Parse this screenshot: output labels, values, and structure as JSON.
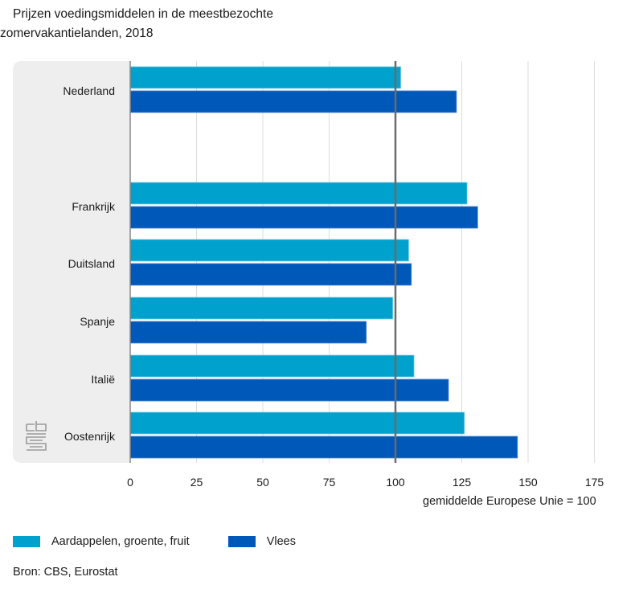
{
  "chart_data": {
    "type": "bar",
    "orientation": "horizontal",
    "title": "Prijzen voedingsmiddelen in de meestbezochte zomervakantielanden, 2018",
    "title_lines": [
      "Prijzen voedingsmiddelen in de meestbezochte",
      "zomervakantielanden, 2018"
    ],
    "categories": [
      "Nederland",
      "Frankrijk",
      "Duitsland",
      "Spanje",
      "Italië",
      "Oostenrijk"
    ],
    "series": [
      {
        "name": "Aardappelen, groente, fruit",
        "color": "#00a1cd",
        "values": [
          102,
          127,
          105,
          99,
          107,
          126
        ]
      },
      {
        "name": "Vlees",
        "color": "#0058b8",
        "values": [
          123,
          131,
          106,
          89,
          120,
          146
        ]
      }
    ],
    "xlabel": "gemiddelde Europese Unie = 100",
    "ylabel": "",
    "xlim": [
      0,
      175
    ],
    "xticks": [
      0,
      25,
      50,
      75,
      100,
      125,
      150,
      175
    ],
    "xtick_labels": [
      "0",
      "25",
      "50",
      "75",
      "100",
      "125",
      "150",
      "175"
    ],
    "reference_line": 100,
    "grid": true,
    "legend_position": "bottom-left",
    "source": "Bron: CBS, Eurostat"
  },
  "legend": {
    "items": [
      {
        "label": "Aardappelen, groente, fruit",
        "color": "#00a1cd"
      },
      {
        "label": "Vlees",
        "color": "#0058b8"
      }
    ]
  },
  "logo": {
    "icon": "cbs-logo-icon"
  }
}
